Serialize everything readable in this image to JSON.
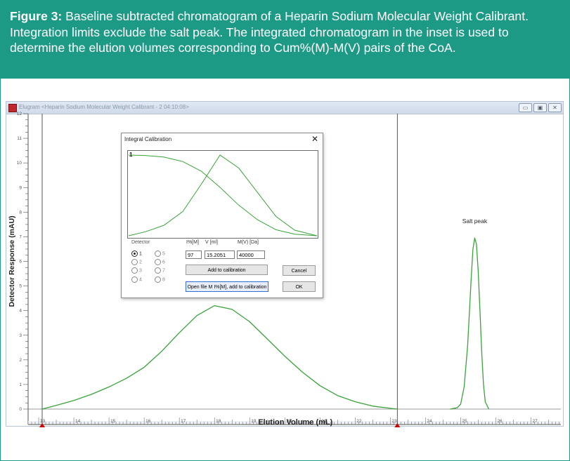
{
  "caption": {
    "lead": "Figure 3:",
    "text": " Baseline subtracted chromatogram of a Heparin Sodium Molecular Weight Calibrant. Integration limits exclude the salt peak. The integrated chromatogram in the inset is used to determine the elution volumes corresponding to Cum%(M)-M(V) pairs of the CoA."
  },
  "window": {
    "title": "Elugram <Heparin Sodium  Molecular Weight Calibrant - 2  04:10:08>",
    "buttons": {
      "minimize": "▭",
      "maximize": "▣",
      "close": "✕"
    }
  },
  "colors": {
    "trace": "#3aa33a",
    "marker": "#cc0000",
    "accent": "#1d9a86"
  },
  "dialog": {
    "title": "Integral Calibration",
    "close": "✕",
    "inset_label": "1",
    "detector_title": "Detector",
    "detectors": [
      "1",
      "2",
      "3",
      "4",
      "5",
      "6",
      "7",
      "8"
    ],
    "selected_detector": "1",
    "col_i": "I%[M]",
    "col_v": "V [ml]",
    "col_m": "M(V) [Da]",
    "val_i": "97",
    "val_v": "15.2051",
    "val_m": "40000",
    "add_button": "Add to calibration",
    "cancel_button": "Cancel",
    "open_file_button": "Open file M I%[M], add to calibration",
    "ok_button": "OK"
  },
  "chart_data": {
    "type": "line",
    "xlabel": "Elution Volume (mL)",
    "ylabel": "Detector Response (mAU)",
    "xlim": [
      12.7,
      27.85
    ],
    "ylim": [
      0,
      12
    ],
    "x_ticks": [
      13,
      14,
      15,
      16,
      17,
      18,
      19,
      20,
      21,
      22,
      23,
      24,
      25,
      26,
      27
    ],
    "y_ticks": [
      0,
      1,
      2,
      3,
      4,
      5,
      6,
      7,
      8,
      9,
      10,
      11,
      12
    ],
    "integration_limits": [
      13.1,
      23.2
    ],
    "annotations": [
      {
        "text": "Salt peak",
        "x": 25.4,
        "y": 7.35
      }
    ],
    "series": [
      {
        "x": [
          13.1,
          13.5,
          14.0,
          14.5,
          15.0,
          15.5,
          16.0,
          16.5,
          17.0,
          17.5,
          18.0,
          18.5,
          19.0,
          19.5,
          20.0,
          20.5,
          21.0,
          21.5,
          22.0,
          22.5,
          23.0,
          23.2
        ],
        "y": [
          0.0,
          0.15,
          0.35,
          0.6,
          0.9,
          1.25,
          1.7,
          2.35,
          3.1,
          3.8,
          4.2,
          4.05,
          3.55,
          2.85,
          2.15,
          1.5,
          0.95,
          0.55,
          0.3,
          0.12,
          0.03,
          0.0
        ]
      },
      {
        "x": [
          24.7,
          24.9,
          25.0,
          25.1,
          25.2,
          25.3,
          25.35,
          25.4,
          25.45,
          25.5,
          25.55,
          25.6,
          25.65,
          25.7,
          25.8
        ],
        "y": [
          0.0,
          0.05,
          0.2,
          0.9,
          2.6,
          5.3,
          6.5,
          6.95,
          6.7,
          5.6,
          4.0,
          2.3,
          1.0,
          0.3,
          0.0
        ]
      }
    ],
    "inset": {
      "type": "line",
      "ylim": [
        0,
        100
      ],
      "series": [
        {
          "x": [
            13.1,
            14,
            15,
            16,
            17,
            18,
            19,
            20,
            21,
            22,
            23.2
          ],
          "y": [
            100,
            99.5,
            97.5,
            92,
            80,
            60,
            38,
            20,
            7.5,
            2,
            0
          ]
        },
        {
          "x": [
            13.1,
            14,
            15,
            16,
            17,
            18,
            19,
            20,
            21,
            22,
            23.2
          ],
          "y": [
            0,
            5,
            13,
            30,
            64,
            100,
            84,
            54,
            24,
            7,
            0
          ]
        }
      ]
    }
  }
}
